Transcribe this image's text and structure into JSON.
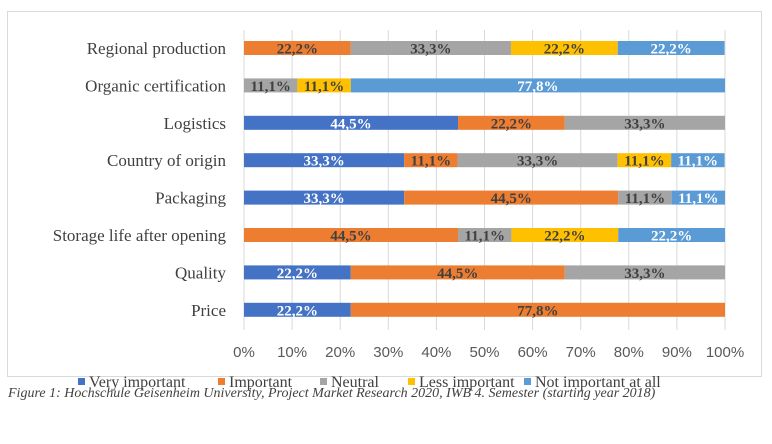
{
  "chart_data": {
    "type": "bar",
    "orientation": "horizontal",
    "stacking": "percent",
    "title": "",
    "xlabel": "",
    "ylabel": "",
    "xlim": [
      0,
      100
    ],
    "x_ticks": [
      "0%",
      "10%",
      "20%",
      "30%",
      "40%",
      "50%",
      "60%",
      "70%",
      "80%",
      "90%",
      "100%"
    ],
    "grid": true,
    "legend_position": "bottom",
    "categories": [
      "Regional production",
      "Organic certification",
      "Logistics",
      "Country of origin",
      "Packaging",
      "Storage life after opening",
      "Quality",
      "Price"
    ],
    "series": [
      {
        "name": "Very important",
        "color": "#4472C4",
        "label_color": "#ffffff",
        "values": [
          0,
          0,
          44.5,
          33.3,
          33.3,
          0,
          22.2,
          22.2
        ],
        "labels": [
          "",
          "",
          "44,5%",
          "33,3%",
          "33,3%",
          "",
          "22,2%",
          "22,2%"
        ]
      },
      {
        "name": "Important",
        "color": "#ED7D31",
        "label_color": "#404040",
        "values": [
          22.2,
          0,
          22.2,
          11.1,
          44.5,
          44.5,
          44.5,
          77.8
        ],
        "labels": [
          "22,2%",
          "",
          "22,2%",
          "11,1%",
          "44,5%",
          "44,5%",
          "44,5%",
          "77,8%"
        ]
      },
      {
        "name": "Neutral",
        "color": "#A5A5A5",
        "label_color": "#404040",
        "values": [
          33.3,
          11.1,
          33.3,
          33.3,
          11.1,
          11.1,
          33.3,
          0
        ],
        "labels": [
          "33,3%",
          "11,1%",
          "33,3%",
          "33,3%",
          "11,1%",
          "11,1%",
          "33,3%",
          ""
        ]
      },
      {
        "name": "Less important",
        "color": "#FFC000",
        "label_color": "#404040",
        "values": [
          22.2,
          11.1,
          0,
          11.1,
          0,
          22.2,
          0,
          0
        ],
        "labels": [
          "22,2%",
          "11,1%",
          "",
          "11,1%",
          "",
          "22,2%",
          "",
          ""
        ]
      },
      {
        "name": "Not important at all",
        "color": "#5B9BD5",
        "label_color": "#ffffff",
        "values": [
          22.2,
          77.8,
          0,
          11.1,
          11.1,
          22.2,
          0,
          0
        ],
        "labels": [
          "22,2%",
          "77,8%",
          "",
          "11,1%",
          "11,1%",
          "22,2%",
          "",
          ""
        ]
      }
    ]
  },
  "caption": "Figure 1: Hochschule Geisenheim University, Project Market Research 2020, IWB 4. Semester (starting year 2018)"
}
